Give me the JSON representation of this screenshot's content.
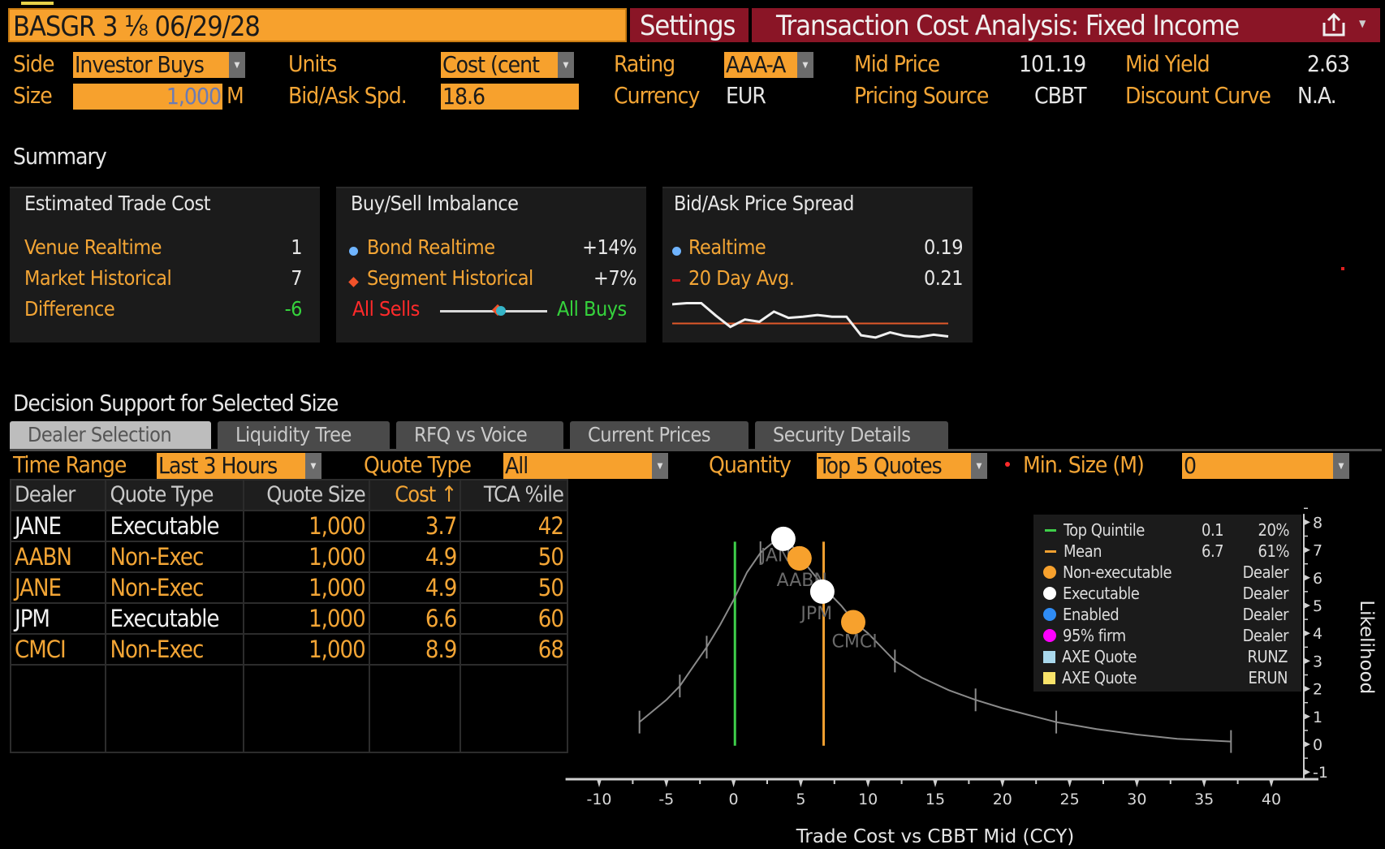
{
  "header": {
    "security": "BASGR 3 ⅛ 06/29/28",
    "settings_label": "Settings",
    "title": "Transaction Cost Analysis: Fixed Income",
    "share_icon": "share-icon",
    "colors": {
      "orange": "#f7a12d",
      "red": "#8a1526"
    }
  },
  "params": {
    "side_label": "Side",
    "side_value": "Investor Buys",
    "size_label": "Size",
    "size_value": "1,000",
    "size_unit": "M",
    "units_label": "Units",
    "units_value": "Cost (cent",
    "bidask_label": "Bid/Ask Spd.",
    "bidask_value": "18.6",
    "rating_label": "Rating",
    "rating_value": "AAA-A",
    "currency_label": "Currency",
    "currency_value": "EUR",
    "midprice_label": "Mid Price",
    "midprice_value": "101.19",
    "pricing_source_label": "Pricing Source",
    "pricing_source_value": "CBBT",
    "midyield_label": "Mid Yield",
    "midyield_value": "2.63",
    "discount_curve_label": "Discount Curve",
    "discount_curve_value": "N.A."
  },
  "summary": {
    "title": "Summary",
    "trade_cost": {
      "title": "Estimated Trade Cost",
      "rows": [
        {
          "label": "Venue Realtime",
          "value": "1"
        },
        {
          "label": "Market Historical",
          "value": "7"
        },
        {
          "label": "Difference",
          "value": "-6"
        }
      ]
    },
    "imbalance": {
      "title": "Buy/Sell Imbalance",
      "rows": [
        {
          "label": "Bond Realtime",
          "value": "+14%"
        },
        {
          "label": "Segment Historical",
          "value": "+7%"
        }
      ],
      "sells_label": "All Sells",
      "buys_label": "All Buys",
      "bond_position": 0.57,
      "segment_position": 0.535
    },
    "spread": {
      "title": "Bid/Ask Price Spread",
      "rows": [
        {
          "label": "Realtime",
          "value": "0.19"
        },
        {
          "label": "20 Day Avg.",
          "value": "0.21"
        }
      ],
      "sparkline": [
        0.245,
        0.247,
        0.247,
        0.225,
        0.205,
        0.218,
        0.214,
        0.232,
        0.221,
        0.223,
        0.226,
        0.223,
        0.223,
        0.19,
        0.186,
        0.195,
        0.189,
        0.187,
        0.191,
        0.188
      ],
      "avg": 0.211,
      "range": [
        0.18,
        0.255
      ]
    }
  },
  "decision": {
    "title": "Decision Support for Selected Size",
    "tabs": [
      "Dealer Selection",
      "Liquidity Tree",
      "RFQ vs Voice",
      "Current Prices",
      "Security Details"
    ],
    "active_tab": 0,
    "filters": {
      "time_range_label": "Time Range",
      "time_range_value": "Last 3 Hours",
      "quote_type_label": "Quote Type",
      "quote_type_value": "All",
      "quantity_label": "Quantity",
      "quantity_value": "Top 5 Quotes",
      "min_size_label": "Min. Size (M)",
      "min_size_value": "0"
    },
    "table": {
      "headers": [
        "Dealer",
        "Quote Type",
        "Quote Size",
        "Cost ↑",
        "TCA %ile"
      ],
      "rows": [
        {
          "dealer": "JANE",
          "type": "Executable",
          "size": "1,000",
          "cost": "3.7",
          "pct": "42",
          "exec": true
        },
        {
          "dealer": "AABN",
          "type": "Non-Exec",
          "size": "1,000",
          "cost": "4.9",
          "pct": "50",
          "exec": false
        },
        {
          "dealer": "JANE",
          "type": "Non-Exec",
          "size": "1,000",
          "cost": "4.9",
          "pct": "50",
          "exec": false
        },
        {
          "dealer": "JPM",
          "type": "Executable",
          "size": "1,000",
          "cost": "6.6",
          "pct": "60",
          "exec": true
        },
        {
          "dealer": "CMCI",
          "type": "Non-Exec",
          "size": "1,000",
          "cost": "8.9",
          "pct": "68",
          "exec": false
        }
      ]
    }
  },
  "chart_data": {
    "type": "scatter",
    "xlabel": "Trade Cost vs CBBT Mid (CCY)",
    "ylabel": "Likelihood",
    "xlim": [
      -10,
      40
    ],
    "ylim": [
      -1,
      8
    ],
    "xticks": [
      "-10",
      "-5",
      "0",
      "5",
      "10",
      "15",
      "20",
      "25",
      "30",
      "35",
      "40"
    ],
    "yticks": [
      "-1",
      "0",
      "1",
      "2",
      "3",
      "4",
      "5",
      "6",
      "7",
      "8"
    ],
    "curve": {
      "x": [
        -7,
        -6,
        -5,
        -4,
        -3,
        -2,
        -1,
        0,
        1,
        2,
        3,
        4,
        5,
        6,
        7,
        8,
        9,
        10,
        12,
        14,
        16,
        18,
        20,
        22,
        24,
        27,
        30,
        33,
        37
      ],
      "y": [
        0.8,
        1.2,
        1.6,
        2.1,
        2.8,
        3.5,
        4.3,
        5.2,
        6.2,
        6.9,
        7.3,
        7.4,
        6.7,
        6.1,
        5.5,
        5.0,
        4.4,
        4.0,
        3.0,
        2.4,
        1.95,
        1.6,
        1.3,
        1.05,
        0.8,
        0.55,
        0.35,
        0.2,
        0.1
      ],
      "tick_marks_x": [
        -7,
        -4,
        -2,
        2,
        12,
        18,
        24,
        37
      ]
    },
    "top_quintile_x": 0.1,
    "mean_x": 6.7,
    "points": [
      {
        "dealer": "JANE",
        "x": 3.7,
        "y": 7.4,
        "kind": "Executable"
      },
      {
        "dealer": "JANE",
        "x": 4.9,
        "y": 6.7,
        "kind": "Non-executable"
      },
      {
        "dealer": "AABN",
        "x": 4.9,
        "y": 6.7,
        "kind": "Non-executable"
      },
      {
        "dealer": "JPM",
        "x": 6.6,
        "y": 5.5,
        "kind": "Executable"
      },
      {
        "dealer": "CMCI",
        "x": 8.9,
        "y": 4.4,
        "kind": "Non-executable"
      }
    ],
    "point_labels": [
      "JANE",
      "AABN",
      "JPM",
      "CMCI"
    ],
    "legend": [
      {
        "label": "Top Quintile",
        "v1": "0.1",
        "v2": "20%",
        "marker": "line",
        "color": "#3ecf4a"
      },
      {
        "label": "Mean",
        "v1": "6.7",
        "v2": "61%",
        "marker": "line",
        "color": "#f0a030"
      },
      {
        "label": "Non-executable",
        "v1": "",
        "v2": "Dealer",
        "marker": "dot",
        "color": "#f7a12d"
      },
      {
        "label": "Executable",
        "v1": "",
        "v2": "Dealer",
        "marker": "dot",
        "color": "#ffffff"
      },
      {
        "label": "Enabled",
        "v1": "",
        "v2": "Dealer",
        "marker": "dot",
        "color": "#2f8cf5"
      },
      {
        "label": "95% firm",
        "v1": "",
        "v2": "Dealer",
        "marker": "dot",
        "color": "#ff00ff"
      },
      {
        "label": "AXE Quote",
        "v1": "",
        "v2": "RUNZ",
        "marker": "square",
        "color": "#a9d8ec"
      },
      {
        "label": "AXE Quote",
        "v1": "",
        "v2": "ERUN",
        "marker": "square",
        "color": "#f8e36a"
      }
    ],
    "legend_placement": "top-right"
  }
}
